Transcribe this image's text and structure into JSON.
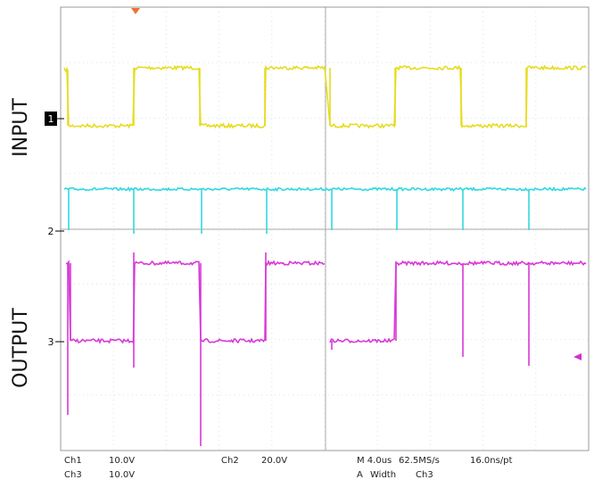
{
  "channel_labels": {
    "input": "INPUT",
    "output": "OUTPUT"
  },
  "markers": [
    "1",
    "2",
    "3"
  ],
  "readout": {
    "ch1_label": "Ch1",
    "ch1_scale": "10.0V",
    "ch2_label": "Ch2",
    "ch2_scale": "20.0V",
    "ch3_label": "Ch3",
    "ch3_scale": "10.0V",
    "timebase": "M 4.0us",
    "sample_rate": "62.5MS/s",
    "resolution": "16.0ns/pt",
    "trigger_source": "A",
    "trigger_type": "Width",
    "trigger_channel": "Ch3"
  }
}
